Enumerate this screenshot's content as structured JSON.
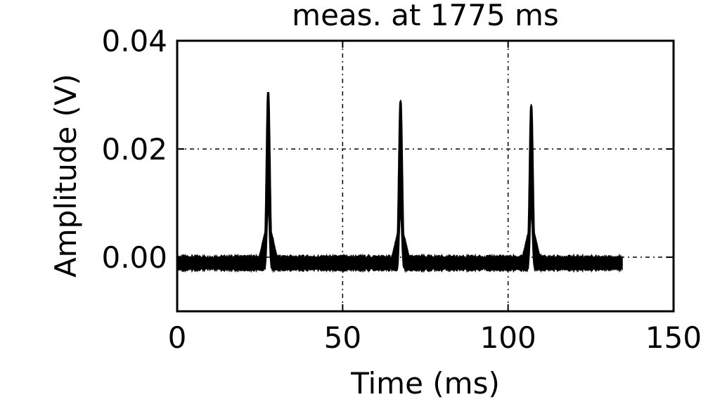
{
  "chart_data": {
    "type": "line",
    "title": "meas. at 1775 ms",
    "xlabel": "Time (ms)",
    "ylabel": "Amplitude (V)",
    "xlim": [
      0,
      150
    ],
    "ylim": [
      -0.01,
      0.04
    ],
    "xticks": [
      0,
      50,
      100,
      150
    ],
    "xtick_labels": [
      "0",
      "50",
      "100",
      "150"
    ],
    "yticks": [
      0.0,
      0.02,
      0.04
    ],
    "ytick_labels": [
      "0.00",
      "0.02",
      "0.04"
    ],
    "grid": true,
    "grid_style": "dash-dot",
    "series": [
      {
        "color": "#000000",
        "x_range": [
          0,
          134.5
        ],
        "baseline": -0.002,
        "noise_band": [
          -0.0038,
          -0.0002
        ],
        "pulses": [
          {
            "center": 27.5,
            "peak": 0.0305,
            "shoulder": 0.0075
          },
          {
            "center": 67.5,
            "peak": 0.0288,
            "shoulder": 0.007
          },
          {
            "center": 107.0,
            "peak": 0.028,
            "shoulder": 0.0072
          }
        ]
      }
    ]
  }
}
